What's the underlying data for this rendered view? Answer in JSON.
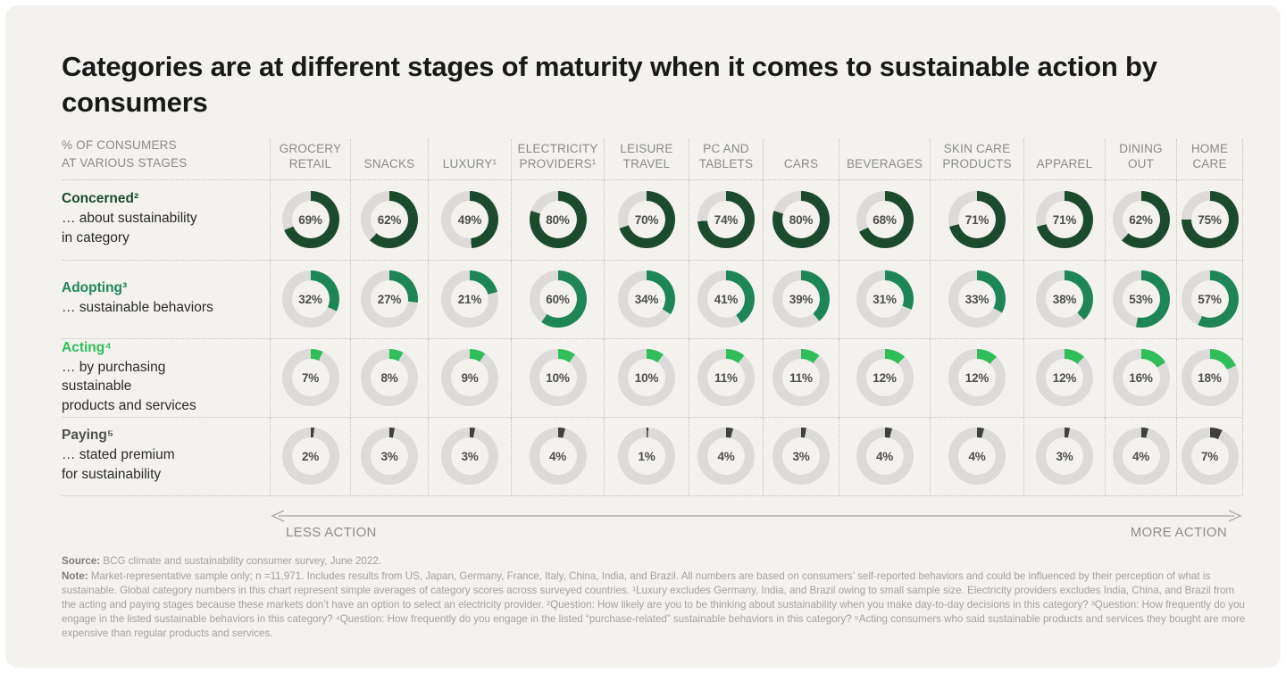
{
  "title": "Categories are at different stages of maturity when it comes to sustainable action by consumers",
  "corner_label": "% OF CONSUMERS\nAT VARIOUS STAGES",
  "colors": {
    "concerned": "#1C4A2D",
    "adopting": "#1E8656",
    "acting": "#2FBE5A",
    "paying": "#3F3F3F",
    "paying_label": "#4F4F4F",
    "ring": "#DCDBD9",
    "background": "#F4F2EF"
  },
  "stages": [
    {
      "name": "Concerned²",
      "desc": "… about sustainability\nin category",
      "color_key": "concerned"
    },
    {
      "name": "Adopting³",
      "desc": "… sustainable behaviors",
      "color_key": "adopting"
    },
    {
      "name": "Acting⁴",
      "desc": "… by purchasing sustainable\nproducts and services",
      "color_key": "acting"
    },
    {
      "name": "Paying⁵",
      "desc": "… stated premium\nfor sustainability",
      "color_key": "paying"
    }
  ],
  "chart_data": {
    "type": "pie",
    "subtype": "donut-grid",
    "unit": "%",
    "title": "Categories are at different stages of maturity when it comes to sustainable action by consumers",
    "categories": [
      "GROCERY RETAIL",
      "SNACKS",
      "LUXURY¹",
      "ELECTRICITY PROVIDERS¹",
      "LEISURE TRAVEL",
      "PC AND TABLETS",
      "CARS",
      "BEVERAGES",
      "SKIN CARE PRODUCTS",
      "APPAREL",
      "DINING OUT",
      "HOME CARE"
    ],
    "series": [
      {
        "name": "Concerned",
        "values": [
          69,
          62,
          49,
          80,
          70,
          74,
          80,
          68,
          71,
          71,
          62,
          75
        ]
      },
      {
        "name": "Adopting",
        "values": [
          32,
          27,
          21,
          60,
          34,
          41,
          39,
          31,
          33,
          38,
          53,
          57
        ]
      },
      {
        "name": "Acting",
        "values": [
          7,
          8,
          9,
          10,
          10,
          11,
          11,
          12,
          12,
          12,
          16,
          18
        ]
      },
      {
        "name": "Paying",
        "values": [
          2,
          3,
          3,
          4,
          1,
          4,
          3,
          4,
          4,
          3,
          4,
          7
        ]
      }
    ],
    "ylim": [
      0,
      100
    ],
    "legend_position": "row-labels-left"
  },
  "axis": {
    "left_label": "LESS ACTION",
    "right_label": "MORE ACTION"
  },
  "footer": {
    "source_label": "Source:",
    "source_text": "BCG climate and sustainability consumer survey, June 2022.",
    "note_label": "Note:",
    "note_text": "Market-representative sample only; n =11,971. Includes results from US, Japan, Germany, France, Italy, China, India, and Brazil. All numbers are based on consumers’ self-reported behaviors and could be influenced by their perception of what is sustainable. Global category numbers in this chart represent simple averages of category scores across surveyed countries. ¹Luxury excludes Germany, India, and Brazil owing to small sample size. Electricity providers excludes India, China, and Brazil from the acting and paying stages because these markets don’t have an option to select an electricity provider. ²Question: How likely are you to be thinking about sustainability when you make day-to-day decisions in this category? ³Question: How frequently do you engage in the listed sustainable behaviors in this category? ⁴Question: How frequently do you engage in the listed “purchase-related” sustainable behaviors in this category? ⁵Acting consumers who said sustainable products and services they bought are more expensive than regular products and services."
  }
}
